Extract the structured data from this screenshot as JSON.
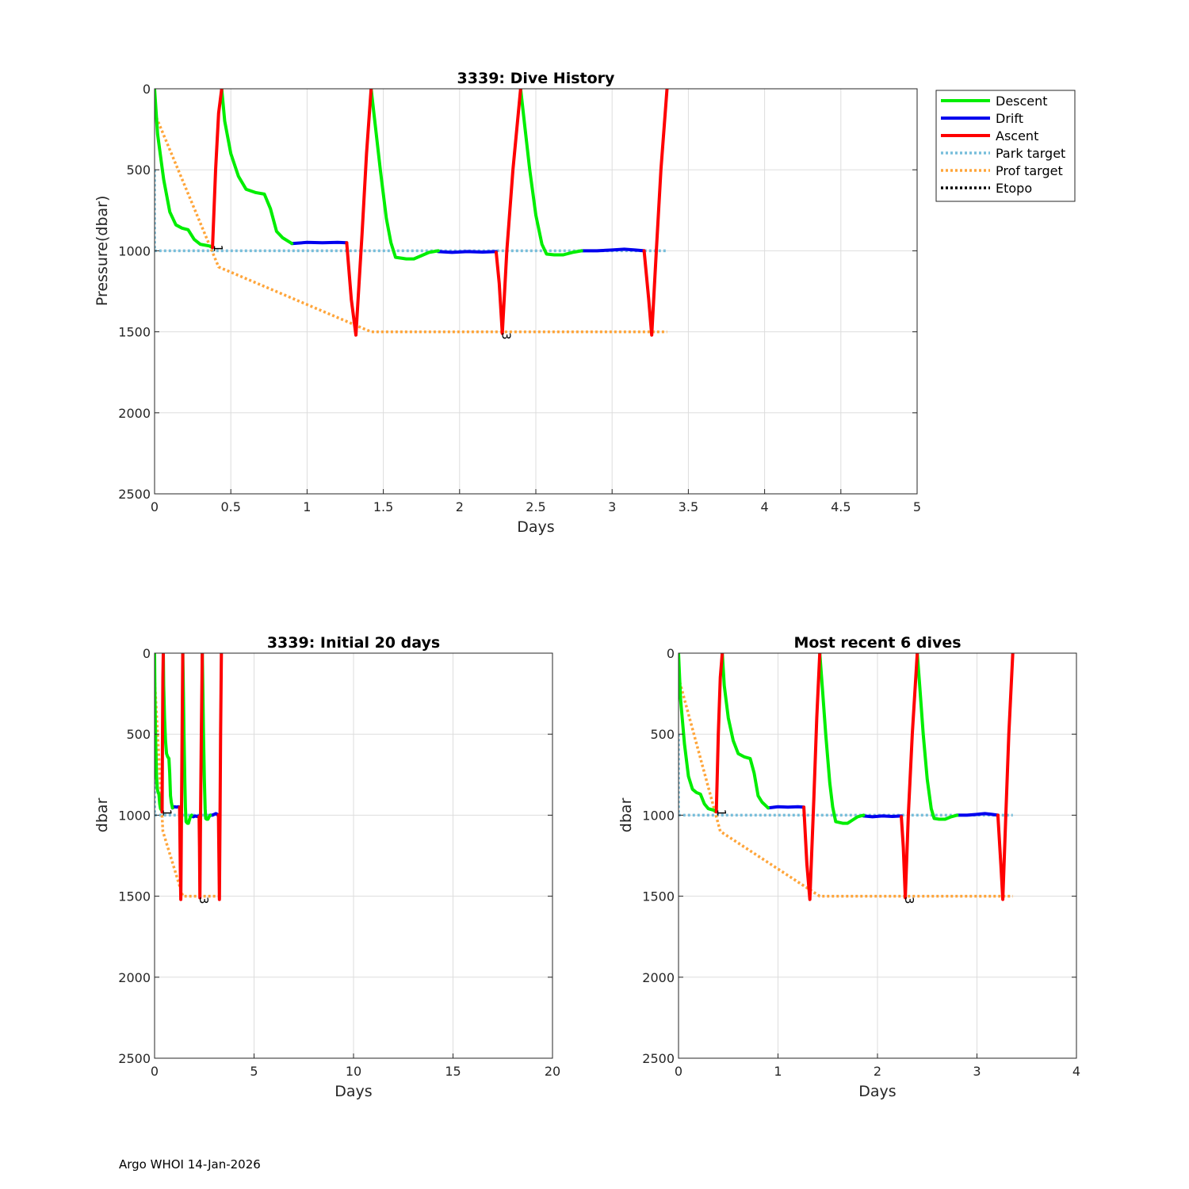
{
  "footer": "Argo WHOI 14-Jan-2026",
  "colors": {
    "descent": "#00ee00",
    "drift": "#0000ee",
    "ascent": "#ff0000",
    "park_target": "#77bedb",
    "prof_target": "#ffa53a",
    "etopo": "#000000",
    "grid": "#dddddd"
  },
  "legend": [
    {
      "key": "descent",
      "label": "Descent",
      "style": "solid"
    },
    {
      "key": "drift",
      "label": "Drift",
      "style": "solid"
    },
    {
      "key": "ascent",
      "label": "Ascent",
      "style": "solid"
    },
    {
      "key": "park_target",
      "label": "Park target",
      "style": "dotted"
    },
    {
      "key": "prof_target",
      "label": "Prof target",
      "style": "dotted"
    },
    {
      "key": "etopo",
      "label": "Etopo",
      "style": "dotted"
    }
  ],
  "chart_data": [
    {
      "id": "dive-history",
      "type": "line",
      "title": "3339: Dive History",
      "xlabel": "Days",
      "ylabel": "Pressure(dbar)",
      "xlim": [
        0,
        5
      ],
      "ylim": [
        2500,
        0
      ],
      "xticks": [
        0,
        0.5,
        1,
        1.5,
        2,
        2.5,
        3,
        3.5,
        4,
        4.5,
        5
      ],
      "xtick_labels": [
        "0",
        "0.5",
        "1",
        "1.5",
        "2",
        "2.5",
        "3",
        "3.5",
        "4",
        "4.5",
        "5"
      ],
      "yticks": [
        0,
        500,
        1000,
        1500,
        2000,
        2500
      ],
      "ytick_labels": [
        "0",
        "500",
        "1000",
        "1500",
        "2000",
        "2500"
      ],
      "grid": true,
      "legend": "outside-top-right",
      "profile_labels": [
        {
          "text": "1",
          "x": 0.39,
          "y": 1050
        },
        {
          "text": "3",
          "x": 2.28,
          "y": 1590
        }
      ]
    },
    {
      "id": "initial-20-days",
      "type": "line",
      "title": "3339: Initial 20 days",
      "xlabel": "Days",
      "ylabel": "dbar",
      "xlim": [
        0,
        20
      ],
      "ylim": [
        2500,
        0
      ],
      "xticks": [
        0,
        5,
        10,
        15,
        20
      ],
      "xtick_labels": [
        "0",
        "5",
        "10",
        "15",
        "20"
      ],
      "yticks": [
        0,
        500,
        1000,
        1500,
        2000,
        2500
      ],
      "ytick_labels": [
        "0",
        "500",
        "1000",
        "1500",
        "2000",
        "2500"
      ],
      "grid": true,
      "profile_labels": [
        {
          "text": "1",
          "x": 0.42,
          "y": 1050
        },
        {
          "text": "3",
          "x": 2.28,
          "y": 1590
        }
      ]
    },
    {
      "id": "recent-6-dives",
      "type": "line",
      "title": "Most recent 6 dives",
      "xlabel": "Days",
      "ylabel": "dbar",
      "xlim": [
        0,
        4
      ],
      "ylim": [
        2500,
        0
      ],
      "xticks": [
        0,
        1,
        2,
        3,
        4
      ],
      "xtick_labels": [
        "0",
        "1",
        "2",
        "3",
        "4"
      ],
      "yticks": [
        0,
        500,
        1000,
        1500,
        2000,
        2500
      ],
      "ytick_labels": [
        "0",
        "500",
        "1000",
        "1500",
        "2000",
        "2500"
      ],
      "grid": true,
      "profile_labels": [
        {
          "text": "1",
          "x": 0.39,
          "y": 1050
        },
        {
          "text": "3",
          "x": 2.28,
          "y": 1590
        }
      ]
    }
  ],
  "series": {
    "descent": [
      [
        [
          0,
          0
        ],
        [
          0.02,
          280
        ],
        [
          0.06,
          560
        ],
        [
          0.1,
          760
        ],
        [
          0.14,
          840
        ],
        [
          0.18,
          860
        ],
        [
          0.22,
          870
        ],
        [
          0.26,
          930
        ],
        [
          0.3,
          960
        ],
        [
          0.36,
          970
        ],
        [
          0.38,
          980
        ]
      ],
      [
        [
          0.44,
          0
        ],
        [
          0.46,
          200
        ],
        [
          0.5,
          400
        ],
        [
          0.55,
          540
        ],
        [
          0.6,
          620
        ],
        [
          0.66,
          640
        ],
        [
          0.72,
          650
        ],
        [
          0.76,
          740
        ],
        [
          0.8,
          880
        ],
        [
          0.84,
          920
        ],
        [
          0.9,
          955
        ]
      ],
      [
        [
          1.42,
          0
        ],
        [
          1.45,
          250
        ],
        [
          1.48,
          500
        ],
        [
          1.52,
          800
        ],
        [
          1.55,
          950
        ],
        [
          1.58,
          1040
        ],
        [
          1.65,
          1050
        ],
        [
          1.7,
          1050
        ],
        [
          1.75,
          1030
        ],
        [
          1.8,
          1010
        ],
        [
          1.86,
          1000
        ]
      ],
      [
        [
          2.4,
          0
        ],
        [
          2.43,
          250
        ],
        [
          2.46,
          500
        ],
        [
          2.5,
          780
        ],
        [
          2.54,
          960
        ],
        [
          2.57,
          1020
        ],
        [
          2.62,
          1025
        ],
        [
          2.68,
          1025
        ],
        [
          2.74,
          1010
        ],
        [
          2.8,
          1000
        ]
      ]
    ],
    "drift": [
      [
        [
          0.9,
          955
        ],
        [
          1.0,
          948
        ],
        [
          1.1,
          950
        ],
        [
          1.2,
          948
        ],
        [
          1.26,
          950
        ]
      ],
      [
        [
          1.86,
          1005
        ],
        [
          1.95,
          1010
        ],
        [
          2.05,
          1005
        ],
        [
          2.15,
          1008
        ],
        [
          2.24,
          1005
        ]
      ],
      [
        [
          2.8,
          1000
        ],
        [
          2.9,
          1000
        ],
        [
          3.0,
          995
        ],
        [
          3.08,
          990
        ],
        [
          3.15,
          995
        ],
        [
          3.21,
          1000
        ]
      ]
    ],
    "ascent": [
      [
        [
          0.38,
          980
        ],
        [
          0.4,
          500
        ],
        [
          0.42,
          150
        ],
        [
          0.44,
          0
        ]
      ],
      [
        [
          1.26,
          950
        ],
        [
          1.29,
          1300
        ],
        [
          1.32,
          1520
        ],
        [
          1.36,
          900
        ],
        [
          1.39,
          400
        ],
        [
          1.42,
          0
        ]
      ],
      [
        [
          2.24,
          1010
        ],
        [
          2.26,
          1200
        ],
        [
          2.28,
          1510
        ],
        [
          2.31,
          1000
        ],
        [
          2.35,
          500
        ],
        [
          2.4,
          0
        ]
      ],
      [
        [
          3.21,
          1000
        ],
        [
          3.24,
          1300
        ],
        [
          3.26,
          1520
        ],
        [
          3.29,
          1000
        ],
        [
          3.32,
          500
        ],
        [
          3.36,
          0
        ]
      ]
    ],
    "park_target": [
      [
        0,
        500
      ],
      [
        0,
        1000
      ],
      [
        3.36,
        1000
      ]
    ],
    "prof_target": [
      [
        0,
        150
      ],
      [
        0.42,
        1100
      ],
      [
        1.42,
        1500
      ],
      [
        3.36,
        1500
      ]
    ]
  }
}
